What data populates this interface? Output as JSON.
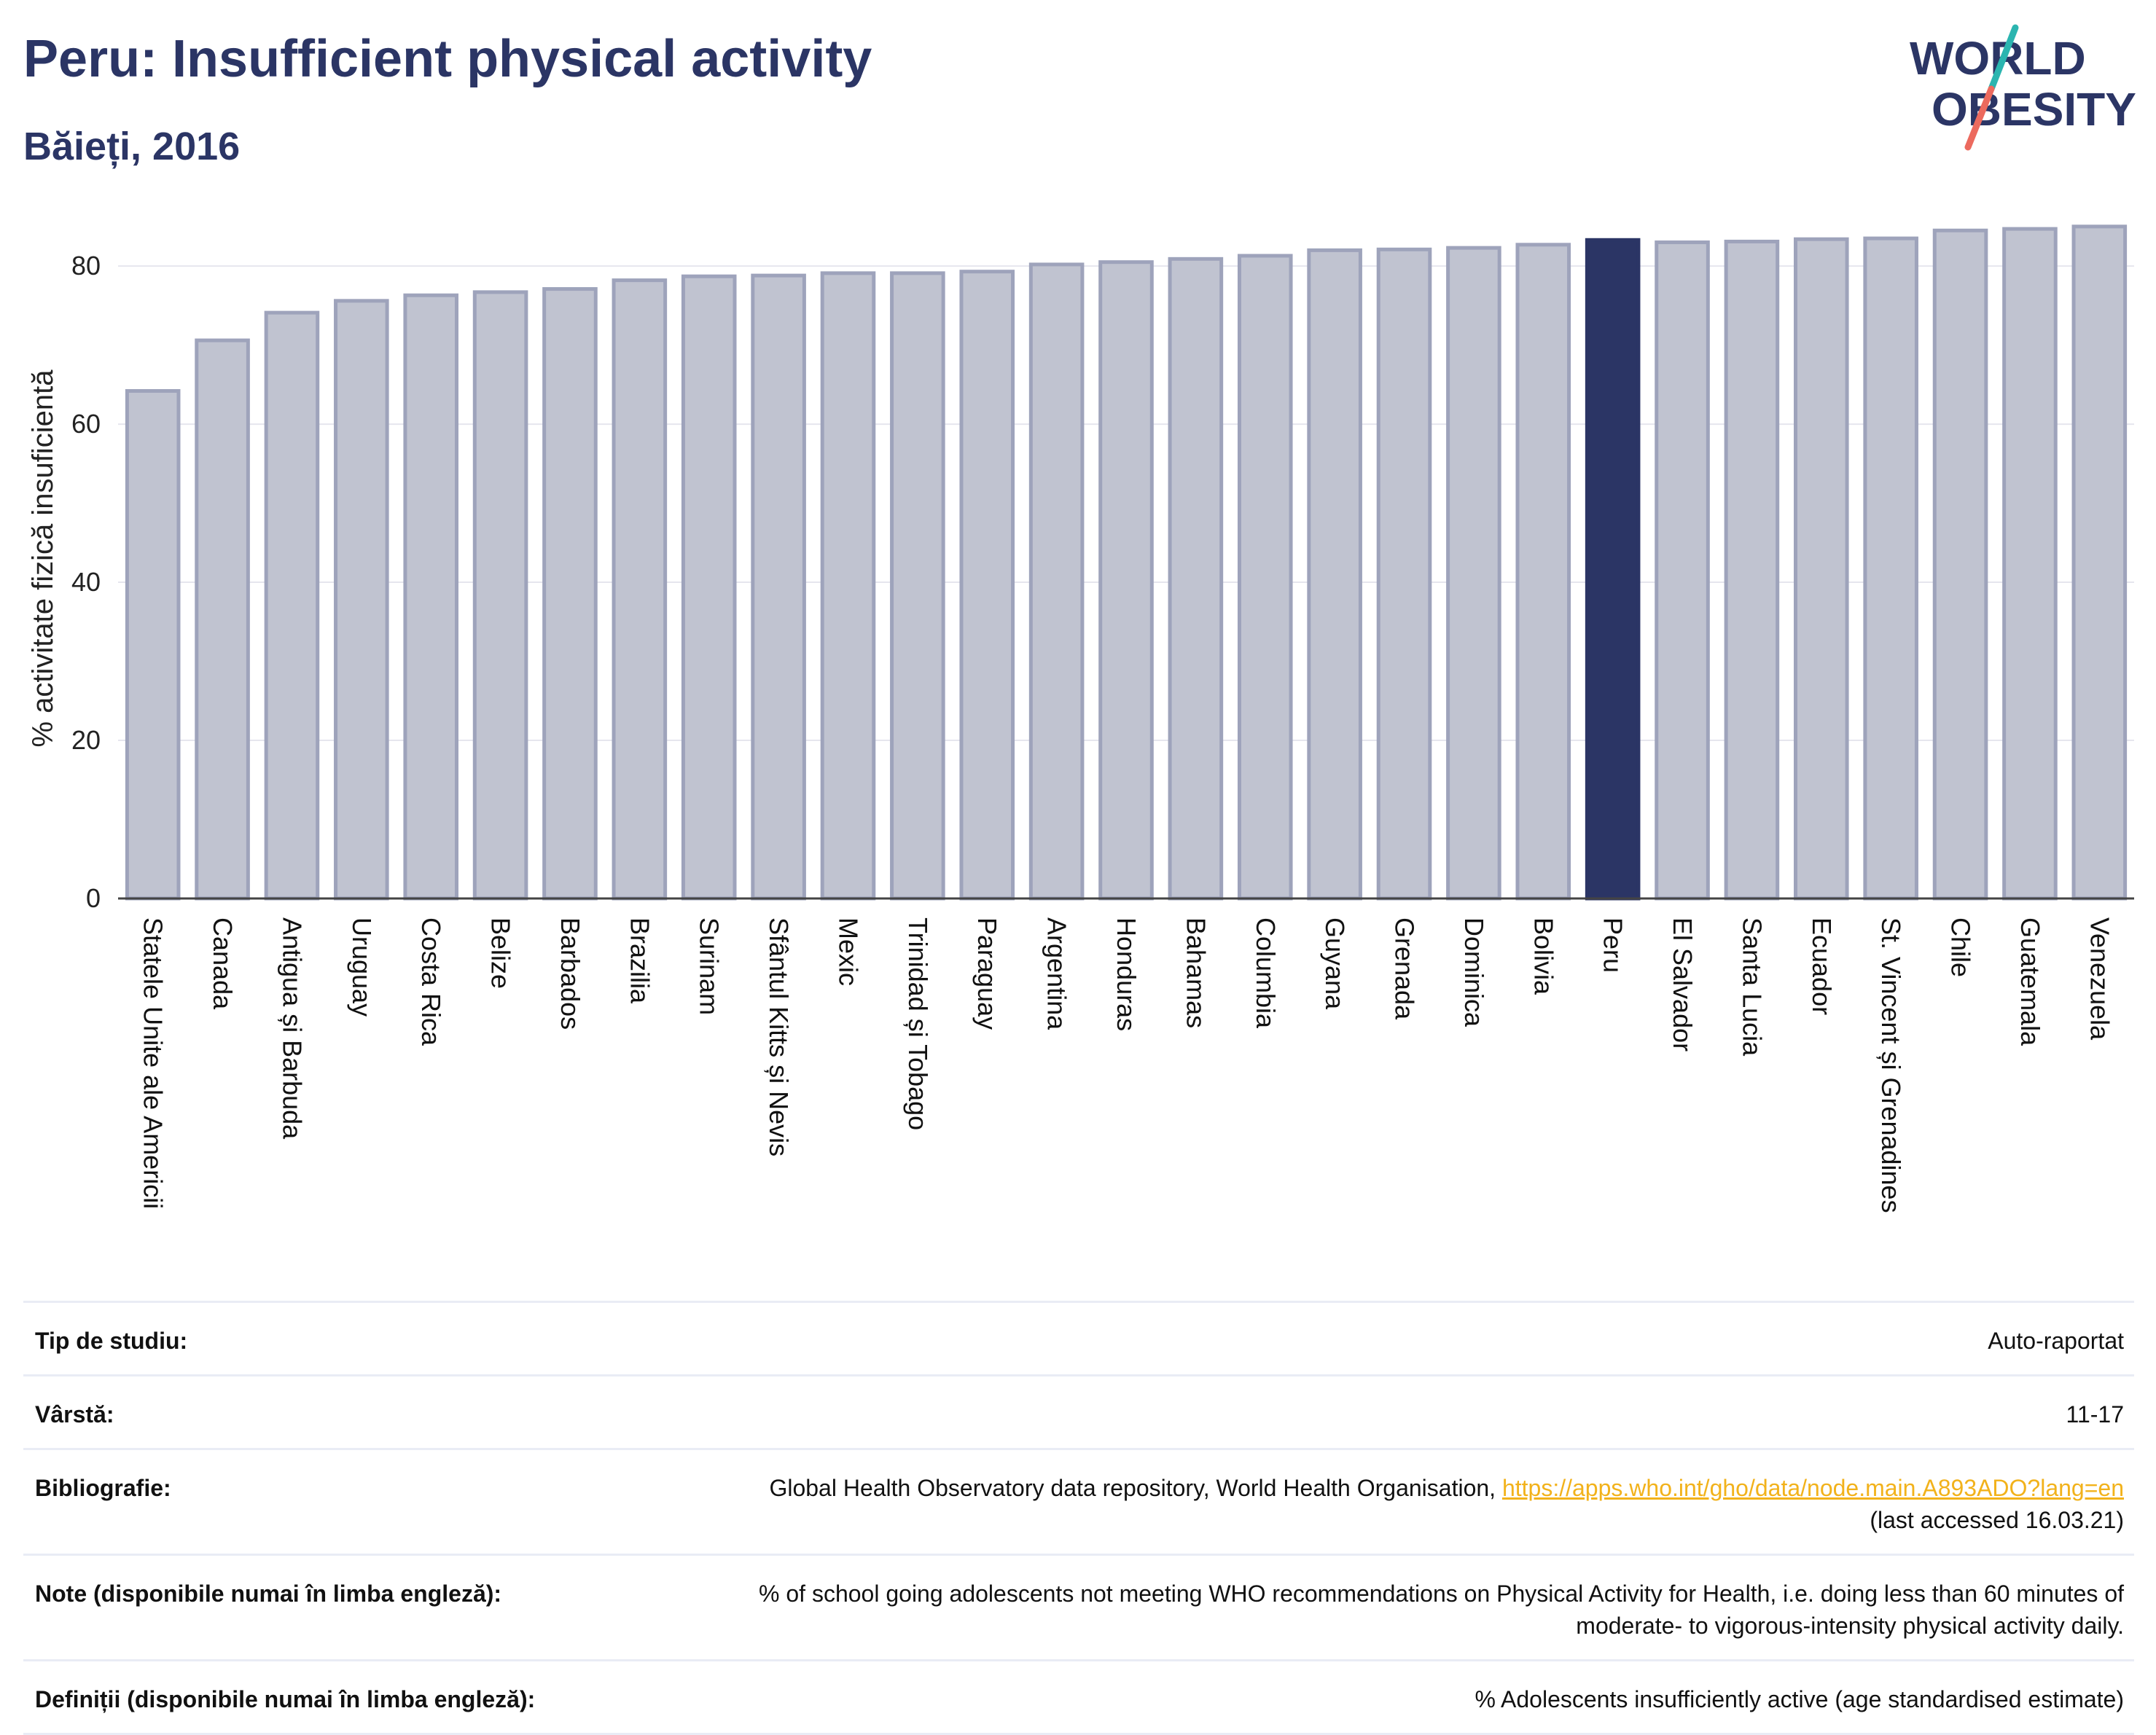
{
  "header": {
    "title": "Peru: Insufficient physical activity",
    "subtitle": "Băieți, 2016"
  },
  "logo": {
    "line1": "WORLD",
    "line2": "OBESITY"
  },
  "colors": {
    "bar_fill": "#c0c3d0",
    "bar_stroke": "#9ea3bb",
    "highlight": "#2b3565",
    "grid": "#e6e6ee",
    "logo_text": "#2b3565",
    "logo_teal": "#2bb5b0",
    "logo_coral": "#ec6a5e"
  },
  "chart_data": {
    "type": "bar",
    "ylabel": "% activitate fizică insuficientă",
    "ylim": [
      0,
      86
    ],
    "yticks": [
      0,
      20,
      40,
      60,
      80
    ],
    "grid": true,
    "highlight": "Peru",
    "categories": [
      "Statele Unite ale Americii",
      "Canada",
      "Antigua și Barbuda",
      "Uruguay",
      "Costa Rica",
      "Belize",
      "Barbados",
      "Brazilia",
      "Surinam",
      "Sfântul Kitts și Nevis",
      "Mexic",
      "Trinidad și Tobago",
      "Paraguay",
      "Argentina",
      "Honduras",
      "Bahamas",
      "Columbia",
      "Guyana",
      "Grenada",
      "Dominica",
      "Bolivia",
      "Peru",
      "El Salvador",
      "Santa Lucia",
      "Ecuador",
      "St. Vincent și Grenadines",
      "Chile",
      "Guatemala",
      "Venezuela"
    ],
    "values": [
      64.2,
      70.6,
      74.1,
      75.6,
      76.3,
      76.7,
      77.1,
      78.2,
      78.7,
      78.8,
      79.1,
      79.1,
      79.3,
      80.2,
      80.5,
      80.9,
      81.3,
      82.0,
      82.1,
      82.3,
      82.7,
      83.3,
      83.0,
      83.1,
      83.4,
      83.5,
      84.5,
      84.7,
      85.0
    ]
  },
  "info": [
    {
      "key": "Tip de studiu:",
      "value": "Auto-raportat"
    },
    {
      "key": "Vârstă:",
      "value": "11-17"
    },
    {
      "key": "Bibliografie:",
      "value": "Global Health Observatory data repository, World Health Organisation, ",
      "link": "https://apps.who.int/gho/data/node.main.A893ADO?lang=en",
      "value2": "(last accessed 16.03.21)"
    },
    {
      "key": "Note (disponibile numai în limba engleză):",
      "value": "% of school going adolescents not meeting WHO recommendations on Physical Activity for Health, i.e. doing less than 60 minutes of",
      "value2": "moderate- to vigorous-intensity physical activity daily."
    },
    {
      "key": "Definiții (disponibile numai în limba engleză):",
      "value": "% Adolescents insufficiently active (age standardised estimate)"
    }
  ]
}
